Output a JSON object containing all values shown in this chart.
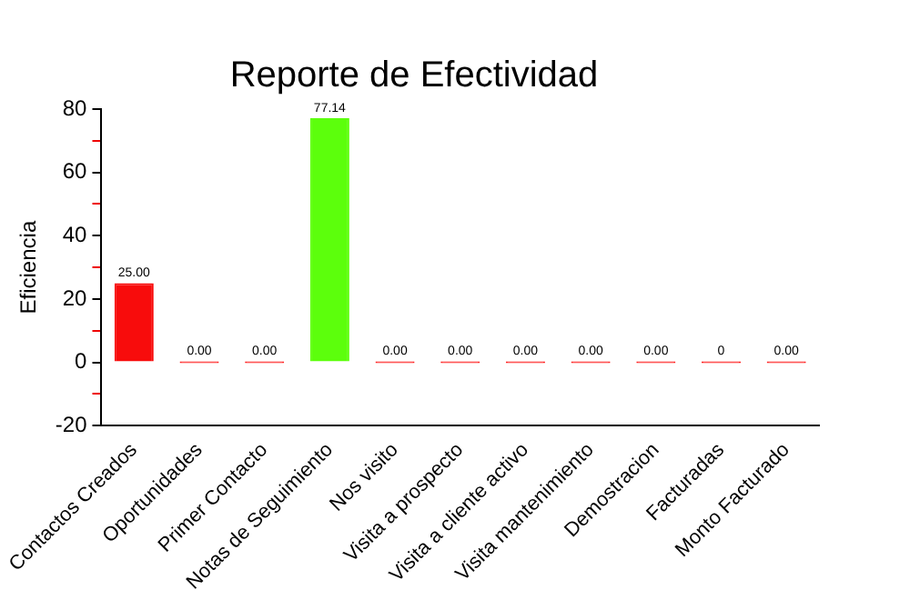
{
  "chart_data": {
    "type": "bar",
    "title": "Reporte de Efectividad",
    "ylabel": "Eficiencia",
    "categories": [
      "Contactos Creados",
      "Oportunidades",
      "Primer Contacto",
      "Notas de Seguimiento",
      "Nos visito",
      "Visita a prospecto",
      "Visita a cliente activo",
      "Visita mantenimiento",
      "Demostracion",
      "Facturadas",
      "Monto Facturado"
    ],
    "values": [
      25,
      0,
      0,
      77.14,
      0,
      0,
      0,
      0,
      0,
      0,
      0
    ],
    "colors": [
      "#f80c0c",
      "#ff2020",
      "#ff2020",
      "#5cff0c",
      "#ff2020",
      "#ff2020",
      "#ff2020",
      "#ff2020",
      "#ff2020",
      "#ff2020",
      "#ff2020"
    ],
    "value_labels": [
      "25.00",
      "0.00",
      "0.00",
      "77.14",
      "0.00",
      "0.00",
      "0.00",
      "0.00",
      "0.00",
      "0",
      "0.00"
    ],
    "ylim": [
      -20,
      80
    ],
    "yticks": [
      -20,
      {
        "value": -10,
        "label": null
      },
      0,
      {
        "value": 10,
        "label": null
      },
      20,
      {
        "value": 30,
        "label": null
      },
      40,
      {
        "value": 50,
        "label": null
      },
      60,
      {
        "value": 70,
        "label": null
      },
      80
    ],
    "grid": false,
    "legend": false
  }
}
